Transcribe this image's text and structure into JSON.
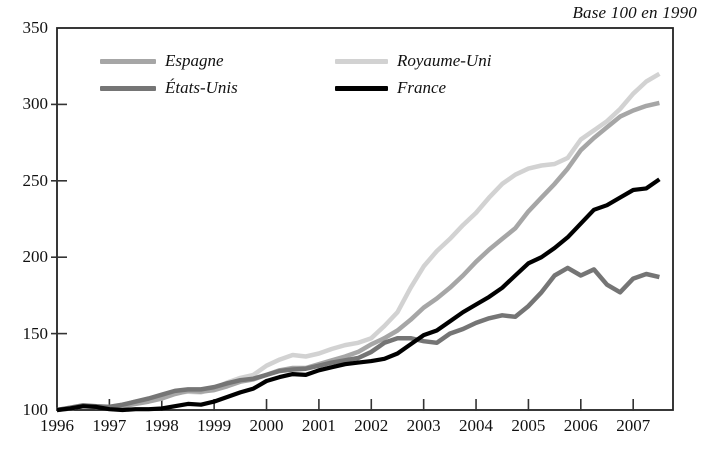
{
  "note": "Base 100 en 1990",
  "colors": {
    "axis": "#222222",
    "tick": "#333333",
    "text": "#111111"
  },
  "chart_data": {
    "type": "line",
    "title": "Base 100 en 1990",
    "xlabel": "",
    "ylabel": "",
    "xlim": [
      1996,
      2007.76
    ],
    "ylim": [
      100,
      350
    ],
    "grid": false,
    "legend_position": "top-inside-two-columns",
    "x_step_years": 0.25,
    "x": [
      1996.0,
      1996.25,
      1996.5,
      1996.75,
      1997.0,
      1997.25,
      1997.5,
      1997.75,
      1998.0,
      1998.25,
      1998.5,
      1998.75,
      1999.0,
      1999.25,
      1999.5,
      1999.75,
      2000.0,
      2000.25,
      2000.5,
      2000.75,
      2001.0,
      2001.25,
      2001.5,
      2001.75,
      2002.0,
      2002.25,
      2002.5,
      2002.75,
      2003.0,
      2003.25,
      2003.5,
      2003.75,
      2004.0,
      2004.25,
      2004.5,
      2004.75,
      2005.0,
      2005.25,
      2005.5,
      2005.75,
      2006.0,
      2006.25,
      2006.5,
      2006.75,
      2007.0,
      2007.25,
      2007.5
    ],
    "series": [
      {
        "name": "Espagne",
        "color": "#a6a6a6",
        "stroke_width": 4.5,
        "values": [
          100,
          101,
          102.5,
          102,
          101.5,
          102.5,
          104,
          105.5,
          107.5,
          110.5,
          112.5,
          112,
          113,
          115.5,
          118.5,
          120,
          123,
          126,
          127.5,
          127.5,
          130,
          132.5,
          135,
          138,
          143,
          147,
          152,
          159,
          167,
          173,
          180,
          188,
          197,
          205,
          212,
          219,
          230,
          239,
          248,
          258,
          270,
          278,
          285,
          292,
          296,
          299,
          301
        ]
      },
      {
        "name": "États-Unis",
        "color": "#757575",
        "stroke_width": 4.5,
        "values": [
          100,
          101.5,
          103,
          102.5,
          102,
          103.5,
          105.5,
          107.5,
          110,
          112.5,
          113.5,
          113.5,
          115,
          117.5,
          119.5,
          120.5,
          123,
          125.5,
          126.5,
          127,
          129,
          131,
          132.5,
          134,
          138,
          144,
          147,
          147,
          145,
          144,
          150,
          153,
          157,
          160,
          162,
          161,
          168,
          177,
          188,
          193,
          188,
          192,
          182,
          177,
          186,
          189,
          187
        ]
      },
      {
        "name": "Royaume-Uni",
        "color": "#d2d2d2",
        "stroke_width": 4.5,
        "values": [
          100,
          101.5,
          103,
          102,
          102,
          103.5,
          105.5,
          106.5,
          108,
          111,
          112,
          111.5,
          114,
          118,
          121,
          123,
          129,
          133,
          136,
          135,
          137,
          140,
          142.5,
          144,
          147,
          155,
          164,
          180,
          194,
          204,
          212,
          221,
          229,
          239,
          248,
          254,
          258,
          260,
          261,
          265,
          277,
          283,
          289,
          297,
          307,
          315,
          320
        ]
      },
      {
        "name": "France",
        "color": "#000000",
        "stroke_width": 4.2,
        "values": [
          100,
          101,
          102.5,
          102,
          100.5,
          100,
          100.5,
          100.5,
          101,
          102.5,
          104,
          103.5,
          105.5,
          108.5,
          111.5,
          114,
          119,
          121.5,
          123.5,
          123,
          126,
          128,
          130,
          131,
          132,
          133.5,
          137,
          143,
          149,
          152,
          158,
          164,
          169,
          174,
          180,
          188,
          196,
          200,
          206,
          213,
          222,
          231,
          234,
          239,
          244,
          245,
          251
        ]
      }
    ],
    "draw_order": [
      2,
      0,
      1,
      3
    ],
    "x_axis": {
      "tick_mark_years": [
        1997,
        1998,
        1999,
        2000,
        2001,
        2002,
        2003,
        2004,
        2005,
        2006,
        2007
      ],
      "labels": [
        "1996",
        "1997",
        "1998",
        "1999",
        "2000",
        "2001",
        "2002",
        "2003",
        "2004",
        "2005",
        "2006",
        "2007"
      ],
      "label_years": [
        1996,
        1997,
        1998,
        1999,
        2000,
        2001,
        2002,
        2003,
        2004,
        2005,
        2006,
        2007
      ]
    },
    "y_axis": {
      "labels": [
        "100",
        "150",
        "200",
        "250",
        "300",
        "350"
      ],
      "label_values": [
        100,
        150,
        200,
        250,
        300,
        350
      ],
      "tick_mark_values": [
        150,
        200,
        250,
        300
      ]
    }
  }
}
